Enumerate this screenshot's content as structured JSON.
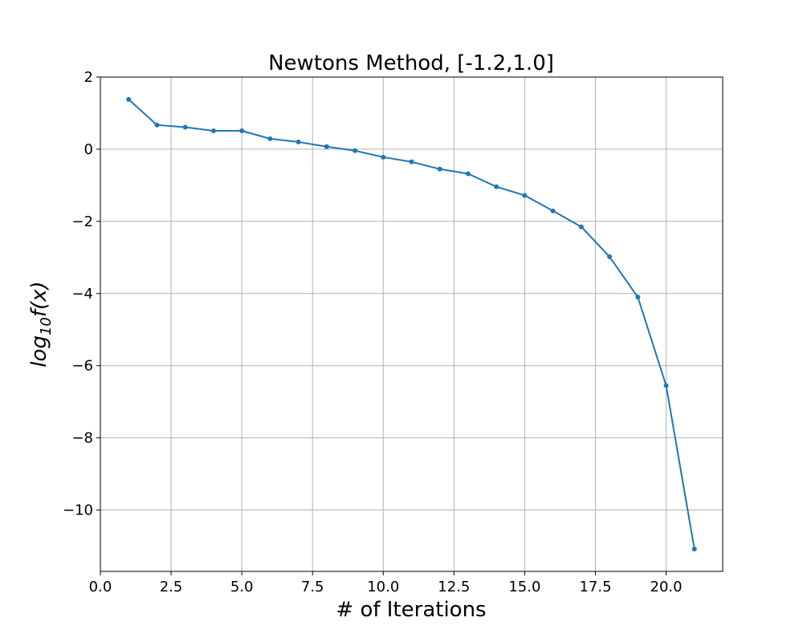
{
  "chart_data": {
    "type": "line",
    "title": "Newtons Method, [-1.2,1.0]",
    "xlabel": "# of Iterations",
    "ylabel": {
      "base": "log",
      "sub": "10",
      "rest": "f(x)"
    },
    "xlim": [
      0,
      22
    ],
    "ylim": [
      -11.7,
      2
    ],
    "xticks": [
      0.0,
      2.5,
      5.0,
      7.5,
      10.0,
      12.5,
      15.0,
      17.5,
      20.0
    ],
    "xtick_labels": [
      "0.0",
      "2.5",
      "5.0",
      "7.5",
      "10.0",
      "12.5",
      "15.0",
      "17.5",
      "20.0"
    ],
    "yticks": [
      2,
      0,
      -2,
      -4,
      -6,
      -8,
      -10
    ],
    "ytick_labels": [
      "2",
      "0",
      "−2",
      "−4",
      "−6",
      "−8",
      "−10"
    ],
    "grid": true,
    "series": [
      {
        "color": "#1f77b4",
        "marker": "dot",
        "x": [
          1,
          2,
          3,
          4,
          5,
          6,
          7,
          8,
          9,
          10,
          11,
          12,
          13,
          14,
          15,
          16,
          17,
          18,
          19,
          20,
          21
        ],
        "y": [
          1.38,
          0.67,
          0.61,
          0.51,
          0.51,
          0.29,
          0.2,
          0.07,
          -0.04,
          -0.22,
          -0.35,
          -0.55,
          -0.68,
          -1.04,
          -1.28,
          -1.71,
          -2.15,
          -2.98,
          -4.1,
          -6.55,
          -11.08
        ]
      }
    ]
  }
}
